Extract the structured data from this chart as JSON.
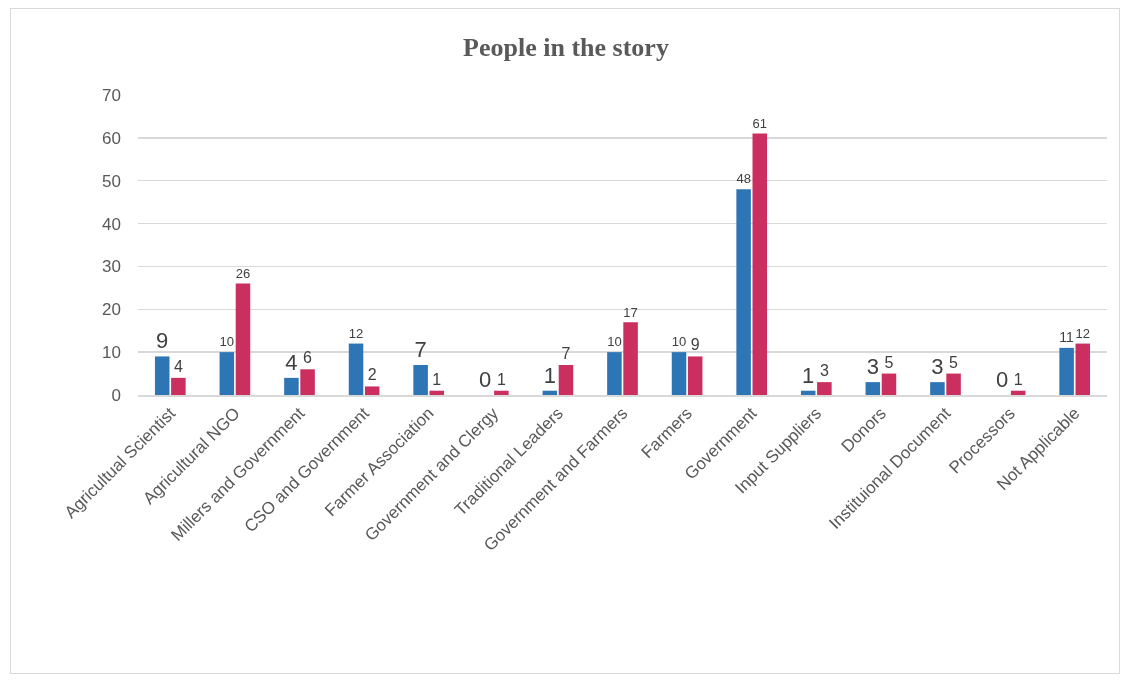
{
  "chart_data": {
    "type": "bar",
    "title": "People in the story",
    "categories": [
      "Agricultual Scientist",
      "Agricultural NGO",
      "Millers and Government",
      "CSO and Government",
      "Farmer Association",
      "Government and Clergy",
      "Traditional Leaders",
      "Government and Farmers",
      "Farmers",
      "Government",
      "Input Suppliers",
      "Donors",
      "Instituional Document",
      "Processors",
      "Not Applicable"
    ],
    "series": [
      {
        "color": "#2e75b6",
        "values": [
          9,
          10,
          4,
          12,
          7,
          0,
          1,
          10,
          10,
          48,
          1,
          3,
          3,
          0,
          11
        ]
      },
      {
        "color": "#cb2f5f",
        "values": [
          4,
          26,
          6,
          2,
          1,
          1,
          7,
          17,
          9,
          61,
          3,
          5,
          5,
          1,
          12
        ]
      }
    ],
    "ylim": [
      0,
      70
    ],
    "yticks": [
      0,
      10,
      20,
      30,
      40,
      50,
      60,
      70
    ],
    "grid": "y",
    "data_labels": true
  }
}
